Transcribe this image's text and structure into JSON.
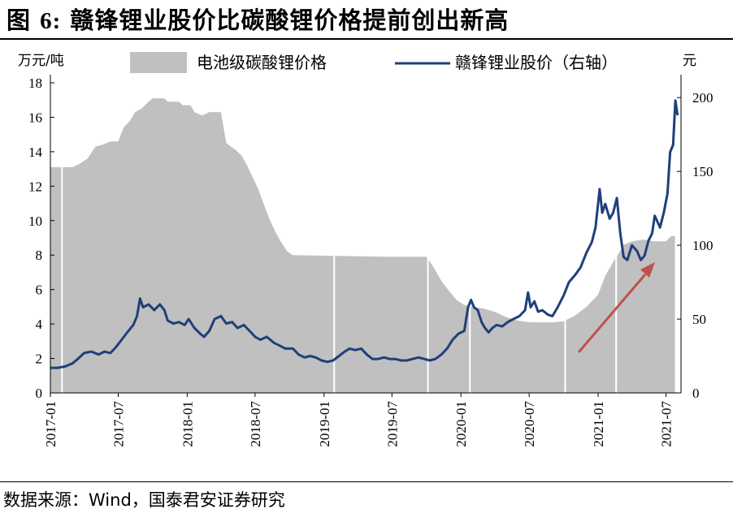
{
  "figure": {
    "title_prefix": "图 ",
    "title_number": "6:",
    "title_text": " 赣锋锂业股价比碳酸锂价格提前创出新高",
    "source": "数据来源：Wind，国泰君安证券研究"
  },
  "chart_data": {
    "type": "area+line",
    "left_unit": "万元/吨",
    "right_unit": "元",
    "ylim_left": [
      0,
      18
    ],
    "ylim_right": [
      0,
      210
    ],
    "yticks_left": [
      0,
      2,
      4,
      6,
      8,
      10,
      12,
      14,
      16,
      18
    ],
    "yticks_right": [
      0,
      50,
      100,
      150,
      200
    ],
    "xticks": [
      "2017-01",
      "2017-07",
      "2018-01",
      "2018-07",
      "2019-01",
      "2019-07",
      "2020-01",
      "2020-07",
      "2021-01",
      "2021-07"
    ],
    "legend_position": "top",
    "grid": false,
    "annotation": "upward red arrow",
    "series": [
      {
        "name": "电池级碳酸锂价格",
        "axis": "left",
        "style": "area",
        "color": "#c0c0c0",
        "points": [
          [
            "2017-01-01",
            13.1
          ],
          [
            "2017-03-01",
            13.1
          ],
          [
            "2017-03-20",
            13.3
          ],
          [
            "2017-04-10",
            13.6
          ],
          [
            "2017-05-01",
            14.3
          ],
          [
            "2017-05-20",
            14.4
          ],
          [
            "2017-06-10",
            14.6
          ],
          [
            "2017-07-01",
            14.6
          ],
          [
            "2017-07-15",
            15.4
          ],
          [
            "2017-08-01",
            15.8
          ],
          [
            "2017-08-15",
            16.3
          ],
          [
            "2017-09-01",
            16.5
          ],
          [
            "2017-09-20",
            16.9
          ],
          [
            "2017-10-01",
            17.1
          ],
          [
            "2017-11-01",
            17.1
          ],
          [
            "2017-11-10",
            16.9
          ],
          [
            "2017-12-10",
            16.9
          ],
          [
            "2017-12-20",
            16.7
          ],
          [
            "2018-01-10",
            16.7
          ],
          [
            "2018-01-20",
            16.3
          ],
          [
            "2018-02-10",
            16.1
          ],
          [
            "2018-03-01",
            16.3
          ],
          [
            "2018-04-01",
            16.3
          ],
          [
            "2018-04-15",
            14.5
          ],
          [
            "2018-05-10",
            14.1
          ],
          [
            "2018-05-25",
            13.8
          ],
          [
            "2018-06-10",
            13.2
          ],
          [
            "2018-06-25",
            12.5
          ],
          [
            "2018-07-10",
            11.8
          ],
          [
            "2018-07-25",
            10.9
          ],
          [
            "2018-08-10",
            10.0
          ],
          [
            "2018-08-25",
            9.3
          ],
          [
            "2018-09-10",
            8.7
          ],
          [
            "2018-09-25",
            8.2
          ],
          [
            "2018-10-10",
            8.0
          ],
          [
            "2019-06-15",
            7.9
          ],
          [
            "2019-10-01",
            7.9
          ],
          [
            "2019-10-20",
            7.3
          ],
          [
            "2019-11-10",
            6.5
          ],
          [
            "2019-12-01",
            5.9
          ],
          [
            "2019-12-20",
            5.4
          ],
          [
            "2020-01-10",
            5.1
          ],
          [
            "2020-02-01",
            5.0
          ],
          [
            "2020-03-01",
            4.9
          ],
          [
            "2020-04-01",
            4.7
          ],
          [
            "2020-05-01",
            4.4
          ],
          [
            "2020-06-01",
            4.2
          ],
          [
            "2020-07-01",
            4.1
          ],
          [
            "2020-09-01",
            4.1
          ],
          [
            "2020-10-01",
            4.15
          ],
          [
            "2020-11-01",
            4.5
          ],
          [
            "2020-12-01",
            5.0
          ],
          [
            "2021-01-01",
            5.7
          ],
          [
            "2021-01-20",
            6.8
          ],
          [
            "2021-02-10",
            7.6
          ],
          [
            "2021-02-25",
            8.1
          ],
          [
            "2021-03-10",
            8.6
          ],
          [
            "2021-04-01",
            8.8
          ],
          [
            "2021-05-01",
            8.9
          ],
          [
            "2021-06-01",
            8.8
          ],
          [
            "2021-07-01",
            8.8
          ],
          [
            "2021-07-15",
            9.1
          ],
          [
            "2021-07-25",
            9.1
          ]
        ]
      },
      {
        "name": "赣锋锂业股价（右轴）",
        "axis": "right",
        "style": "line",
        "color": "#1f3f7a",
        "points": [
          [
            "2017-01-01",
            17
          ],
          [
            "2017-01-20",
            17
          ],
          [
            "2017-02-10",
            18
          ],
          [
            "2017-03-01",
            20
          ],
          [
            "2017-03-15",
            23
          ],
          [
            "2017-04-01",
            27
          ],
          [
            "2017-04-20",
            28
          ],
          [
            "2017-05-10",
            26
          ],
          [
            "2017-05-25",
            28
          ],
          [
            "2017-06-10",
            27
          ],
          [
            "2017-06-25",
            31
          ],
          [
            "2017-07-10",
            36
          ],
          [
            "2017-07-25",
            41
          ],
          [
            "2017-08-10",
            46
          ],
          [
            "2017-08-20",
            52
          ],
          [
            "2017-08-28",
            64
          ],
          [
            "2017-09-05",
            58
          ],
          [
            "2017-09-20",
            60
          ],
          [
            "2017-10-05",
            56
          ],
          [
            "2017-10-20",
            60
          ],
          [
            "2017-11-01",
            56
          ],
          [
            "2017-11-10",
            49
          ],
          [
            "2017-11-25",
            47
          ],
          [
            "2017-12-10",
            48
          ],
          [
            "2017-12-25",
            46
          ],
          [
            "2018-01-05",
            50
          ],
          [
            "2018-01-20",
            44
          ],
          [
            "2018-02-05",
            40
          ],
          [
            "2018-02-15",
            38
          ],
          [
            "2018-03-01",
            42
          ],
          [
            "2018-03-15",
            50
          ],
          [
            "2018-04-01",
            52
          ],
          [
            "2018-04-15",
            47
          ],
          [
            "2018-05-01",
            48
          ],
          [
            "2018-05-15",
            44
          ],
          [
            "2018-06-01",
            46
          ],
          [
            "2018-06-20",
            41
          ],
          [
            "2018-07-01",
            38
          ],
          [
            "2018-07-15",
            36
          ],
          [
            "2018-08-01",
            38
          ],
          [
            "2018-08-20",
            34
          ],
          [
            "2018-09-05",
            32
          ],
          [
            "2018-09-20",
            30
          ],
          [
            "2018-10-10",
            30
          ],
          [
            "2018-10-25",
            26
          ],
          [
            "2018-11-10",
            24
          ],
          [
            "2018-11-25",
            25
          ],
          [
            "2018-12-10",
            24
          ],
          [
            "2018-12-25",
            22
          ],
          [
            "2019-01-10",
            21
          ],
          [
            "2019-01-25",
            22
          ],
          [
            "2019-02-10",
            25
          ],
          [
            "2019-02-25",
            28
          ],
          [
            "2019-03-10",
            30
          ],
          [
            "2019-03-25",
            29
          ],
          [
            "2019-04-10",
            30
          ],
          [
            "2019-04-25",
            26
          ],
          [
            "2019-05-10",
            23
          ],
          [
            "2019-05-25",
            23
          ],
          [
            "2019-06-10",
            24
          ],
          [
            "2019-06-25",
            23
          ],
          [
            "2019-07-10",
            23
          ],
          [
            "2019-07-25",
            22
          ],
          [
            "2019-08-10",
            22
          ],
          [
            "2019-08-25",
            23
          ],
          [
            "2019-09-10",
            24
          ],
          [
            "2019-09-25",
            23
          ],
          [
            "2019-10-10",
            22
          ],
          [
            "2019-10-25",
            23
          ],
          [
            "2019-11-10",
            26
          ],
          [
            "2019-11-25",
            30
          ],
          [
            "2019-12-10",
            36
          ],
          [
            "2019-12-25",
            40
          ],
          [
            "2020-01-10",
            42
          ],
          [
            "2020-01-20",
            58
          ],
          [
            "2020-01-28",
            63
          ],
          [
            "2020-02-05",
            58
          ],
          [
            "2020-02-15",
            56
          ],
          [
            "2020-02-25",
            48
          ],
          [
            "2020-03-05",
            44
          ],
          [
            "2020-03-15",
            41
          ],
          [
            "2020-03-25",
            44
          ],
          [
            "2020-04-05",
            46
          ],
          [
            "2020-04-20",
            45
          ],
          [
            "2020-05-05",
            48
          ],
          [
            "2020-05-20",
            50
          ],
          [
            "2020-06-05",
            52
          ],
          [
            "2020-06-20",
            56
          ],
          [
            "2020-06-28",
            68
          ],
          [
            "2020-07-05",
            58
          ],
          [
            "2020-07-15",
            62
          ],
          [
            "2020-07-25",
            55
          ],
          [
            "2020-08-05",
            56
          ],
          [
            "2020-08-20",
            53
          ],
          [
            "2020-09-01",
            52
          ],
          [
            "2020-09-15",
            58
          ],
          [
            "2020-10-01",
            66
          ],
          [
            "2020-10-15",
            75
          ],
          [
            "2020-11-01",
            80
          ],
          [
            "2020-11-15",
            85
          ],
          [
            "2020-12-01",
            95
          ],
          [
            "2020-12-15",
            102
          ],
          [
            "2020-12-25",
            112
          ],
          [
            "2021-01-05",
            138
          ],
          [
            "2021-01-12",
            122
          ],
          [
            "2021-01-20",
            128
          ],
          [
            "2021-02-01",
            118
          ],
          [
            "2021-02-10",
            122
          ],
          [
            "2021-02-20",
            132
          ],
          [
            "2021-03-01",
            108
          ],
          [
            "2021-03-10",
            92
          ],
          [
            "2021-03-20",
            90
          ],
          [
            "2021-04-01",
            100
          ],
          [
            "2021-04-15",
            96
          ],
          [
            "2021-04-25",
            90
          ],
          [
            "2021-05-05",
            93
          ],
          [
            "2021-05-15",
            103
          ],
          [
            "2021-05-25",
            108
          ],
          [
            "2021-06-01",
            120
          ],
          [
            "2021-06-15",
            112
          ],
          [
            "2021-06-25",
            122
          ],
          [
            "2021-07-05",
            135
          ],
          [
            "2021-07-12",
            163
          ],
          [
            "2021-07-20",
            168
          ],
          [
            "2021-07-26",
            198
          ],
          [
            "2021-08-01",
            188
          ]
        ]
      }
    ]
  }
}
